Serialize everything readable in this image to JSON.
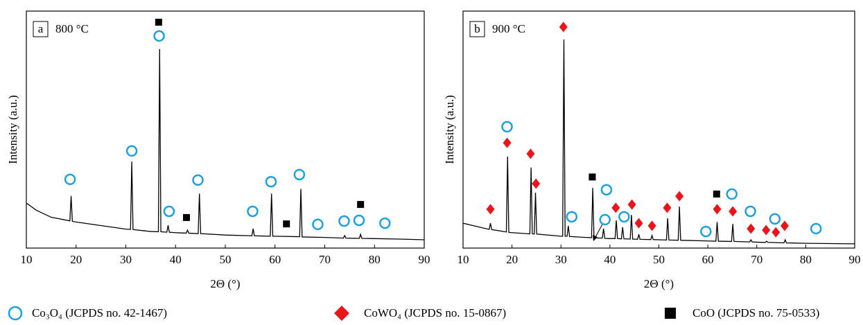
{
  "chart_data": [
    {
      "type": "line",
      "panel_label": "a",
      "annotation": "800 °C",
      "color": "#000000",
      "x_label": "2Θ (°)",
      "y_label": "Intensity (a.u.)",
      "xlim": [
        10,
        90
      ],
      "xticks": [
        10,
        20,
        30,
        40,
        50,
        60,
        70,
        80,
        90
      ],
      "ylim": [
        0,
        100
      ],
      "x": [
        10,
        12,
        15,
        18.75,
        19,
        19.25,
        20,
        25,
        30,
        30.95,
        31.2,
        31.45,
        35,
        36.55,
        36.8,
        37.05,
        38.25,
        38.5,
        38.75,
        40,
        42.15,
        42.4,
        42.65,
        44.55,
        44.8,
        45.05,
        50,
        55.35,
        55.6,
        55.85,
        59.05,
        59.3,
        59.55,
        60,
        64.95,
        65.2,
        65.45,
        70,
        73.75,
        74,
        74.25,
        76.95,
        77.2,
        77.45,
        80,
        85,
        90
      ],
      "values": [
        19,
        16,
        13,
        11.5,
        22,
        11.3,
        11,
        9.5,
        8,
        7.9,
        36.5,
        7.8,
        7,
        6.9,
        84,
        6.9,
        6.7,
        9.6,
        6.7,
        6.5,
        6.3,
        7.6,
        6.3,
        6.1,
        23,
        6.1,
        5.5,
        5.2,
        8.2,
        5.2,
        5,
        23,
        5,
        5,
        4.8,
        25,
        4.7,
        4.5,
        4.2,
        5.3,
        4.2,
        4.1,
        5.8,
        4.1,
        4,
        3.8,
        3.5
      ],
      "markers": [
        {
          "x": [
            18.8,
            31.2,
            36.7,
            38.7,
            44.5,
            55.5,
            59.2,
            64.9,
            68.6,
            73.9,
            76.9,
            82.1
          ],
          "y": [
            29,
            41,
            89.5,
            15.5,
            28.7,
            15.5,
            28,
            31,
            10,
            11.4,
            11.7,
            10.5
          ]
        },
        {
          "x": [],
          "y": []
        },
        {
          "x": [
            36.6,
            42.2,
            62.3,
            77.2
          ],
          "y": [
            95.3,
            12.9,
            10.2,
            18.4
          ]
        }
      ]
    },
    {
      "type": "line",
      "panel_label": "b",
      "annotation": "900 °C",
      "color": "#000000",
      "x_label": "2Θ (°)",
      "y_label": "Intensity (a.u.)",
      "xlim": [
        10,
        90
      ],
      "xticks": [
        10,
        20,
        30,
        40,
        50,
        60,
        70,
        80,
        90
      ],
      "ylim": [
        0,
        100
      ],
      "x": [
        10,
        12,
        15.35,
        15.6,
        15.85,
        18.85,
        19.1,
        19.35,
        20,
        23.65,
        23.9,
        24.15,
        24.55,
        24.8,
        25.05,
        30,
        30.35,
        30.6,
        30.85,
        31.25,
        31.5,
        31.75,
        35,
        36.25,
        36.5,
        36.75,
        38.45,
        38.7,
        38.95,
        40,
        41.05,
        41.3,
        41.55,
        42.35,
        42.6,
        42.85,
        44.15,
        44.4,
        44.65,
        45.65,
        45.9,
        46.15,
        48.35,
        48.6,
        48.85,
        50,
        51.55,
        51.8,
        52.05,
        53.95,
        54.2,
        54.45,
        60,
        61.65,
        61.9,
        62.15,
        64.85,
        65.1,
        65.35,
        68.55,
        68.8,
        69.05,
        70,
        71.75,
        72,
        72.25,
        75.55,
        75.8,
        76.05,
        80,
        85,
        90
      ],
      "values": [
        10.5,
        9.5,
        7.9,
        10.5,
        7.8,
        6.8,
        38.6,
        6.6,
        6.5,
        6,
        34,
        6,
        5.9,
        23.4,
        5.9,
        5,
        5,
        88,
        5,
        5,
        9.4,
        4.9,
        4.5,
        4.4,
        25.4,
        4.3,
        4.2,
        8.2,
        4.1,
        4,
        4,
        11.7,
        4,
        3.9,
        8.8,
        3.9,
        3.8,
        14,
        3.8,
        3.7,
        5.8,
        3.7,
        3.6,
        5.3,
        3.6,
        3.5,
        3.4,
        12.6,
        3.4,
        3.3,
        17.5,
        3.3,
        3,
        2.9,
        11,
        2.9,
        2.8,
        10.2,
        2.8,
        2.6,
        3.5,
        2.6,
        2.5,
        2.4,
        2.9,
        2.4,
        2.2,
        3.5,
        2.2,
        2,
        1.9,
        1.8
      ],
      "markers": [
        {
          "x": [
            19.0,
            32.2,
            39.0,
            39.3,
            42.9,
            59.6,
            64.9,
            68.7,
            73.7,
            82.1
          ],
          "y": [
            51.2,
            13.2,
            12,
            24.6,
            13.2,
            7,
            22.8,
            15.5,
            12.3,
            8.2
          ]
        },
        {
          "x": [
            15.6,
            19.0,
            23.8,
            24.9,
            30.5,
            41.2,
            44.5,
            45.9,
            48.6,
            51.7,
            54.2,
            61.9,
            65.1,
            68.8,
            71.9,
            73.9,
            75.7
          ],
          "y": [
            16.4,
            44.4,
            39.8,
            27.2,
            93.3,
            17,
            18.4,
            10.5,
            9.4,
            17,
            21.9,
            16.4,
            15.5,
            8.2,
            7.6,
            6.7,
            9.4
          ]
        },
        {
          "x": [
            36.4,
            61.8
          ],
          "y": [
            30,
            22.8
          ]
        }
      ]
    }
  ],
  "legend": [
    {
      "name": "Co₃O₄  (JCPDS no. 42-1467)",
      "marker": "circle",
      "color": "#1ba1e2"
    },
    {
      "name": "CoWO₄  (JCPDS no. 15-0867)",
      "marker": "diamond",
      "color": "#e8161b"
    },
    {
      "name": "CoO  (JCPDS no. 75-0533)",
      "marker": "square",
      "color": "#000000"
    }
  ]
}
